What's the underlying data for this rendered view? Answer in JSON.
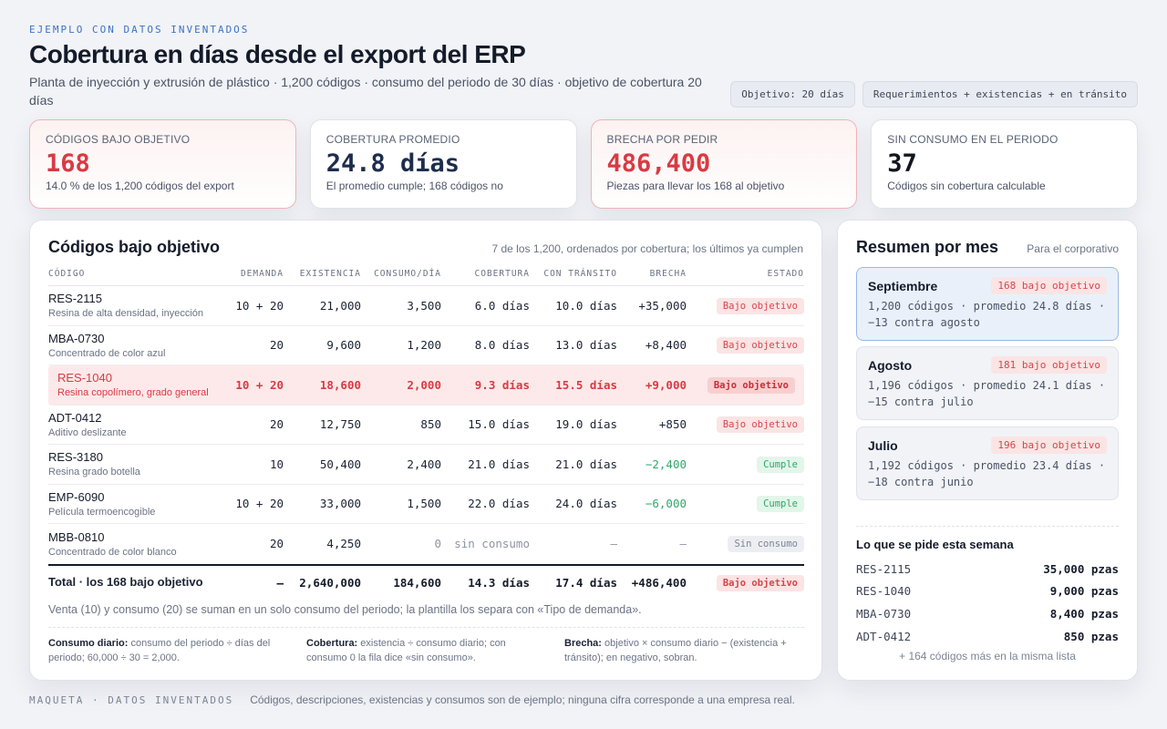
{
  "header": {
    "eyebrow": "EJEMPLO CON DATOS INVENTADOS",
    "title": "Cobertura en días desde el export del ERP",
    "subtitle": "Planta de inyección y extrusión de plástico · 1,200 códigos · consumo del periodo de 30 días · objetivo de cobertura 20 días",
    "chips": [
      "Objetivo: 20 días",
      "Requerimientos + existencias + en tránsito"
    ]
  },
  "kpis": [
    {
      "label": "CÓDIGOS BAJO OBJETIVO",
      "value": "168",
      "note": "14.0 % de los 1,200 códigos del export"
    },
    {
      "label": "COBERTURA PROMEDIO",
      "value": "24.8 días",
      "note": "El promedio cumple; 168 códigos no"
    },
    {
      "label": "BRECHA POR PEDIR",
      "value": "486,400",
      "note": "Piezas para llevar los 168 al objetivo"
    },
    {
      "label": "SIN CONSUMO EN EL PERIODO",
      "value": "37",
      "note": "Códigos sin cobertura calculable"
    }
  ],
  "table": {
    "title": "Códigos bajo objetivo",
    "meta": "7 de los 1,200, ordenados por cobertura; los últimos ya cumplen",
    "columns": [
      "CÓDIGO",
      "DEMANDA",
      "EXISTENCIA",
      "CONSUMO/DÍA",
      "COBERTURA",
      "CON TRÁNSITO",
      "BRECHA",
      "ESTADO"
    ],
    "rows": [
      {
        "code": "RES-2115",
        "desc": "Resina de alta densidad, inyección",
        "demand": "10 + 20",
        "stock": "21,000",
        "daily": "3,500",
        "cover": "6.0 días",
        "transit": "10.0 días",
        "gap": "+35,000",
        "status": "Bajo objetivo"
      },
      {
        "code": "MBA-0730",
        "desc": "Concentrado de color azul",
        "demand": "20",
        "stock": "9,600",
        "daily": "1,200",
        "cover": "8.0 días",
        "transit": "13.0 días",
        "gap": "+8,400",
        "status": "Bajo objetivo"
      },
      {
        "code": "RES-1040",
        "desc": "Resina copolímero, grado general",
        "demand": "10 + 20",
        "stock": "18,600",
        "daily": "2,000",
        "cover": "9.3 días",
        "transit": "15.5 días",
        "gap": "+9,000",
        "status": "Bajo objetivo"
      },
      {
        "code": "ADT-0412",
        "desc": "Aditivo deslizante",
        "demand": "20",
        "stock": "12,750",
        "daily": "850",
        "cover": "15.0 días",
        "transit": "19.0 días",
        "gap": "+850",
        "status": "Bajo objetivo"
      },
      {
        "code": "RES-3180",
        "desc": "Resina grado botella",
        "demand": "10",
        "stock": "50,400",
        "daily": "2,400",
        "cover": "21.0 días",
        "transit": "21.0 días",
        "gap": "−2,400",
        "status": "Cumple"
      },
      {
        "code": "EMP-6090",
        "desc": "Película termoencogible",
        "demand": "10 + 20",
        "stock": "33,000",
        "daily": "1,500",
        "cover": "22.0 días",
        "transit": "24.0 días",
        "gap": "−6,000",
        "status": "Cumple"
      },
      {
        "code": "MBB-0810",
        "desc": "Concentrado de color blanco",
        "demand": "20",
        "stock": "4,250",
        "daily": "0",
        "cover": "sin consumo",
        "transit": "—",
        "gap": "—",
        "status": "Sin consumo"
      }
    ],
    "total": {
      "label": "Total · los 168 bajo objetivo",
      "demand": "—",
      "stock": "2,640,000",
      "daily": "184,600",
      "cover": "14.3 días",
      "transit": "17.4 días",
      "gap": "+486,400",
      "status": "Bajo objetivo"
    },
    "note": "Venta (10) y consumo (20) se suman en un solo consumo del periodo; la plantilla los separa con «Tipo de demanda».",
    "definitions": [
      {
        "term": "Consumo diario:",
        "text": "consumo del periodo ÷ días del periodo; 60,000 ÷ 30 = 2,000."
      },
      {
        "term": "Cobertura:",
        "text": "existencia ÷ consumo diario; con consumo 0 la fila dice «sin consumo»."
      },
      {
        "term": "Brecha:",
        "text": "objetivo × consumo diario − (existencia + tránsito); en negativo, sobran."
      }
    ]
  },
  "side": {
    "title": "Resumen por mes",
    "meta": "Para el corporativo",
    "months": [
      {
        "name": "Septiembre",
        "badge": "168 bajo objetivo",
        "line1": "1,200 códigos · promedio 24.8 días ·",
        "line2": "−13 contra agosto"
      },
      {
        "name": "Agosto",
        "badge": "181 bajo objetivo",
        "line1": "1,196 códigos · promedio 24.1 días ·",
        "line2": "−15 contra julio"
      },
      {
        "name": "Julio",
        "badge": "196 bajo objetivo",
        "line1": "1,192 códigos · promedio 23.4 días ·",
        "line2": "−18 contra junio"
      }
    ],
    "ask_title": "Lo que se pide esta semana",
    "asks": [
      {
        "code": "RES-2115",
        "qty": "35,000 pzas"
      },
      {
        "code": "RES-1040",
        "qty": "9,000 pzas"
      },
      {
        "code": "MBA-0730",
        "qty": "8,400 pzas"
      },
      {
        "code": "ADT-0412",
        "qty": "850 pzas"
      }
    ],
    "ask_more": "+ 164 códigos más en la misma lista"
  },
  "footer": {
    "tag": "MAQUETA · DATOS INVENTADOS",
    "text": "Códigos, descripciones, existencias y consumos son de ejemplo; ninguna cifra corresponde a una empresa real."
  },
  "colors": {
    "alert": "#d83a43",
    "ok": "#2fa86a",
    "accent": "#3b73c4",
    "navy": "#1e2d4d"
  }
}
